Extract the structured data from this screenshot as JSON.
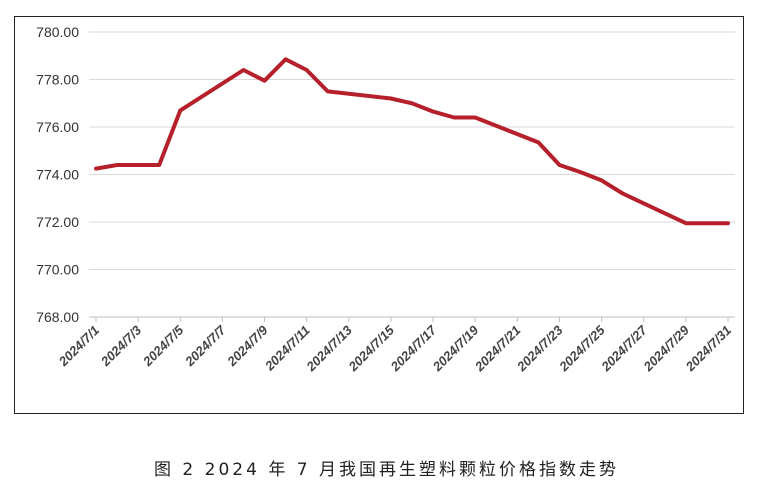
{
  "caption": "图 2 2024 年 7 月我国再生塑料颗粒价格指数走势",
  "chart_data": {
    "type": "line",
    "title": "",
    "xlabel": "",
    "ylabel": "",
    "ylim": [
      768,
      780
    ],
    "yticks": [
      "768.00",
      "770.00",
      "772.00",
      "774.00",
      "776.00",
      "778.00",
      "780.00"
    ],
    "grid": "horizontal",
    "line_color": "#b5202a",
    "x": [
      "2024/7/1",
      "2024/7/2",
      "2024/7/3",
      "2024/7/4",
      "2024/7/5",
      "2024/7/8",
      "2024/7/9",
      "2024/7/10",
      "2024/7/11",
      "2024/7/12",
      "2024/7/15",
      "2024/7/16",
      "2024/7/17",
      "2024/7/18",
      "2024/7/19",
      "2024/7/22",
      "2024/7/23",
      "2024/7/24",
      "2024/7/25",
      "2024/7/26",
      "2024/7/29",
      "2024/7/30",
      "2024/7/31"
    ],
    "x_tick_labels": [
      "2024/7/1",
      "2024/7/3",
      "2024/7/5",
      "2024/7/7",
      "2024/7/9",
      "2024/7/11",
      "2024/7/13",
      "2024/7/15",
      "2024/7/17",
      "2024/7/19",
      "2024/7/21",
      "2024/7/23",
      "2024/7/25",
      "2024/7/27",
      "2024/7/29",
      "2024/7/31"
    ],
    "series": [
      {
        "values": [
          774.25,
          774.4,
          774.4,
          774.4,
          776.7,
          778.4,
          777.95,
          778.85,
          778.4,
          777.5,
          777.2,
          777.0,
          776.65,
          776.4,
          776.4,
          775.35,
          774.4,
          774.1,
          773.75,
          773.2,
          771.95,
          771.95,
          771.95
        ]
      }
    ]
  }
}
